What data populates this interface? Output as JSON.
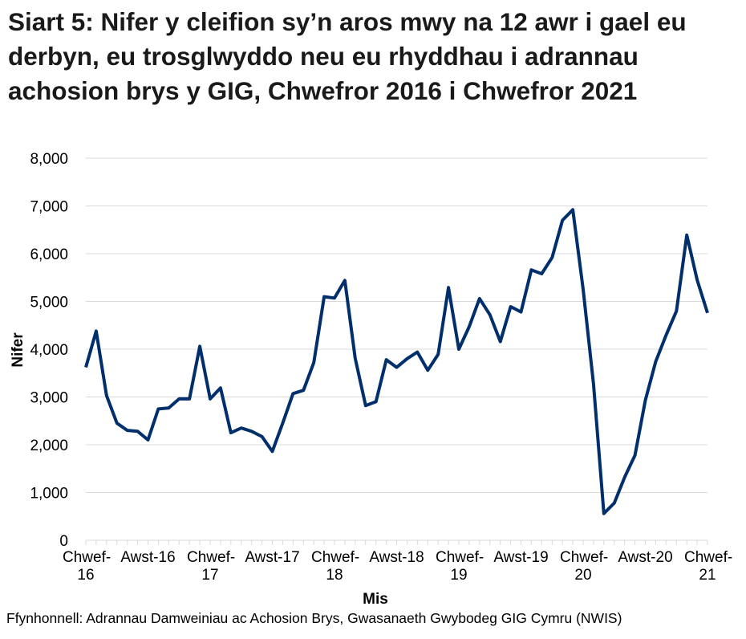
{
  "chart_data": {
    "type": "line",
    "title": "Siart 5: Nifer y cleifion sy’n aros mwy na 12 awr i gael eu derbyn, eu trosglwyddo neu eu rhyddhau i adrannau achosion brys y GIG, Chwefror 2016 i Chwefror 2021",
    "xlabel": "Mis",
    "ylabel": "Nifer",
    "ylim": [
      0,
      8000
    ],
    "yticks": [
      "0",
      "1,000",
      "2,000",
      "3,000",
      "4,000",
      "5,000",
      "6,000",
      "7,000",
      "8,000"
    ],
    "xticks": [
      {
        "index": 0,
        "label": "Chwef-16"
      },
      {
        "index": 6,
        "label": "Awst-16"
      },
      {
        "index": 12,
        "label": "Chwef-17"
      },
      {
        "index": 18,
        "label": "Awst-17"
      },
      {
        "index": 24,
        "label": "Chwef-18"
      },
      {
        "index": 30,
        "label": "Awst-18"
      },
      {
        "index": 36,
        "label": "Chwef-19"
      },
      {
        "index": 42,
        "label": "Awst-19"
      },
      {
        "index": 48,
        "label": "Chwef-20"
      },
      {
        "index": 54,
        "label": "Awst-20"
      },
      {
        "index": 60,
        "label": "Chwef-21"
      }
    ],
    "grid": true,
    "line_color": "#002f6c",
    "values": [
      3620,
      4380,
      3030,
      2450,
      2300,
      2280,
      2100,
      2750,
      2770,
      2960,
      2960,
      4060,
      2960,
      3190,
      2250,
      2350,
      2280,
      2170,
      1860,
      2450,
      3070,
      3140,
      3720,
      5100,
      5070,
      5440,
      3810,
      2820,
      2900,
      3780,
      3620,
      3800,
      3940,
      3560,
      3890,
      5290,
      4000,
      4470,
      5060,
      4720,
      4160,
      4890,
      4780,
      5660,
      5580,
      5920,
      6700,
      6920,
      5250,
      3270,
      560,
      780,
      1320,
      1780,
      2930,
      3740,
      4290,
      4800,
      6390,
      5450,
      4760
    ]
  },
  "source": "Ffynhonnell: Adrannau Damweiniau ac Achosion Brys, Gwasanaeth Gwybodeg GIG Cymru (NWIS)"
}
